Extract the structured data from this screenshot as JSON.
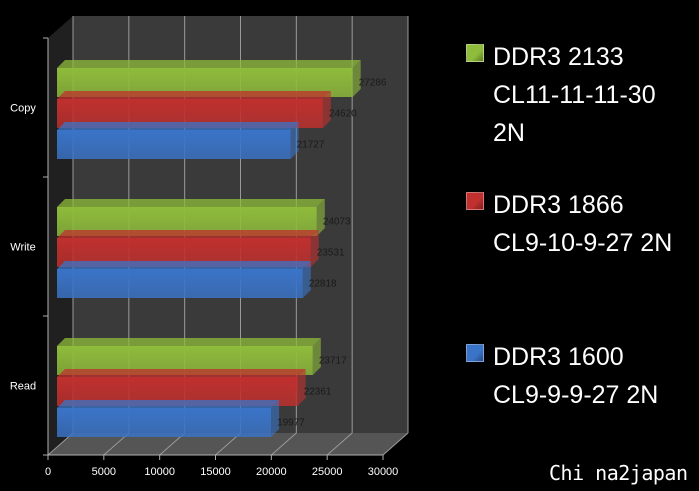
{
  "chart_data": {
    "type": "bar",
    "orientation": "horizontal",
    "style": "3d",
    "categories": [
      "Copy",
      "Write",
      "Read"
    ],
    "series": [
      {
        "name": "DDR3 2133 CL11-11-11-30 2N",
        "color": "#8fbc3b",
        "values": [
          27286,
          24073,
          23717
        ]
      },
      {
        "name": "DDR3 1866 CL9-10-9-27 2N",
        "color": "#c0302e",
        "values": [
          24620,
          23531,
          22361
        ]
      },
      {
        "name": "DDR3 1600 CL9-9-9-27 2N",
        "color": "#3a74c8",
        "values": [
          21727,
          22818,
          19977
        ]
      }
    ],
    "xlim": [
      0,
      30000
    ],
    "xticks": [
      0,
      5000,
      10000,
      15000,
      20000,
      25000,
      30000
    ],
    "grid": true,
    "legend_position": "right"
  },
  "legend": [
    {
      "color": "#8fbc3b",
      "lines": [
        "DDR3 2133",
        "CL11-11-11-30",
        "2N"
      ]
    },
    {
      "color": "#c0302e",
      "lines": [
        "DDR3 1866",
        "CL9-10-9-27 2N"
      ]
    },
    {
      "color": "#3a74c8",
      "lines": [
        "DDR3 1600",
        "CL9-9-9-27 2N"
      ]
    }
  ],
  "watermark": "Chi na2japan",
  "colors": {
    "background": "#000000",
    "wall": "#3a3a3a",
    "grid": "#9a9a9a"
  }
}
